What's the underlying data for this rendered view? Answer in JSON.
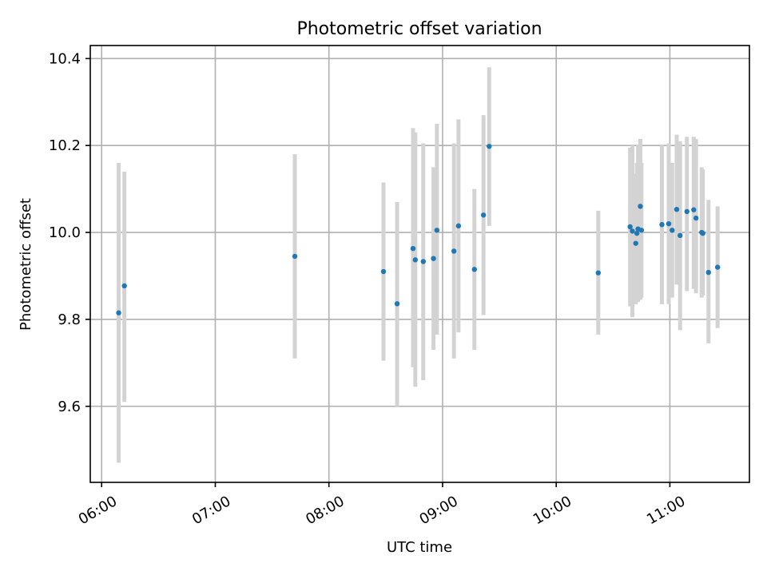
{
  "chart_data": {
    "type": "scatter",
    "title": "Photometric offset variation",
    "xlabel": "UTC time",
    "ylabel": "Photometric offset",
    "x_unit": "hours UTC",
    "xlim": [
      5.9,
      11.7
    ],
    "ylim": [
      9.425,
      10.43
    ],
    "x_ticks": [
      {
        "value": 6,
        "label": "06:00"
      },
      {
        "value": 7,
        "label": "07:00"
      },
      {
        "value": 8,
        "label": "08:00"
      },
      {
        "value": 9,
        "label": "09:00"
      },
      {
        "value": 10,
        "label": "10:00"
      },
      {
        "value": 11,
        "label": "11:00"
      }
    ],
    "y_ticks": [
      {
        "value": 9.6,
        "label": "9.6"
      },
      {
        "value": 9.8,
        "label": "9.8"
      },
      {
        "value": 10.0,
        "label": "10.0"
      },
      {
        "value": 10.2,
        "label": "10.2"
      },
      {
        "value": 10.4,
        "label": "10.4"
      }
    ],
    "grid": true,
    "colors": {
      "point": "#1f77b4",
      "error_bar": "#d3d3d3",
      "grid": "#b0b0b0"
    },
    "points": [
      {
        "x": 6.15,
        "y": 9.815,
        "ylow": 9.47,
        "yhigh": 10.16
      },
      {
        "x": 6.2,
        "y": 9.877,
        "ylow": 9.61,
        "yhigh": 10.14
      },
      {
        "x": 7.7,
        "y": 9.945,
        "ylow": 9.71,
        "yhigh": 10.18
      },
      {
        "x": 8.48,
        "y": 9.91,
        "ylow": 9.705,
        "yhigh": 10.115
      },
      {
        "x": 8.6,
        "y": 9.836,
        "ylow": 9.6,
        "yhigh": 10.07
      },
      {
        "x": 8.74,
        "y": 9.963,
        "ylow": 9.69,
        "yhigh": 10.24
      },
      {
        "x": 8.76,
        "y": 9.937,
        "ylow": 9.645,
        "yhigh": 10.23
      },
      {
        "x": 8.83,
        "y": 9.933,
        "ylow": 9.66,
        "yhigh": 10.205
      },
      {
        "x": 8.92,
        "y": 9.94,
        "ylow": 9.73,
        "yhigh": 10.15
      },
      {
        "x": 8.95,
        "y": 10.005,
        "ylow": 9.765,
        "yhigh": 10.25
      },
      {
        "x": 9.1,
        "y": 9.957,
        "ylow": 9.71,
        "yhigh": 10.205
      },
      {
        "x": 9.14,
        "y": 10.015,
        "ylow": 9.77,
        "yhigh": 10.26
      },
      {
        "x": 9.28,
        "y": 9.915,
        "ylow": 9.73,
        "yhigh": 10.1
      },
      {
        "x": 9.36,
        "y": 10.04,
        "ylow": 9.81,
        "yhigh": 10.27
      },
      {
        "x": 9.41,
        "y": 10.198,
        "ylow": 10.015,
        "yhigh": 10.38
      },
      {
        "x": 10.37,
        "y": 9.907,
        "ylow": 9.765,
        "yhigh": 10.05
      },
      {
        "x": 10.65,
        "y": 10.013,
        "ylow": 9.83,
        "yhigh": 10.195
      },
      {
        "x": 10.67,
        "y": 10.003,
        "ylow": 9.805,
        "yhigh": 10.2
      },
      {
        "x": 10.7,
        "y": 9.975,
        "ylow": 9.835,
        "yhigh": 10.135
      },
      {
        "x": 10.71,
        "y": 9.998,
        "ylow": 9.84,
        "yhigh": 10.16
      },
      {
        "x": 10.72,
        "y": 10.008,
        "ylow": 9.84,
        "yhigh": 10.2
      },
      {
        "x": 10.74,
        "y": 10.06,
        "ylow": 9.845,
        "yhigh": 10.215
      },
      {
        "x": 10.75,
        "y": 10.005,
        "ylow": 9.85,
        "yhigh": 10.16
      },
      {
        "x": 10.93,
        "y": 10.018,
        "ylow": 9.835,
        "yhigh": 10.2
      },
      {
        "x": 10.99,
        "y": 10.02,
        "ylow": 9.835,
        "yhigh": 10.205
      },
      {
        "x": 11.02,
        "y": 10.005,
        "ylow": 9.85,
        "yhigh": 10.16
      },
      {
        "x": 11.06,
        "y": 10.053,
        "ylow": 9.88,
        "yhigh": 10.225
      },
      {
        "x": 11.09,
        "y": 9.993,
        "ylow": 9.775,
        "yhigh": 10.21
      },
      {
        "x": 11.15,
        "y": 10.048,
        "ylow": 9.865,
        "yhigh": 10.22
      },
      {
        "x": 11.21,
        "y": 10.052,
        "ylow": 9.87,
        "yhigh": 10.22
      },
      {
        "x": 11.23,
        "y": 10.033,
        "ylow": 9.86,
        "yhigh": 10.215
      },
      {
        "x": 11.28,
        "y": 10.0,
        "ylow": 9.85,
        "yhigh": 10.15
      },
      {
        "x": 11.29,
        "y": 9.998,
        "ylow": 9.855,
        "yhigh": 10.145
      },
      {
        "x": 11.34,
        "y": 9.908,
        "ylow": 9.745,
        "yhigh": 10.075
      },
      {
        "x": 11.42,
        "y": 9.92,
        "ylow": 9.78,
        "yhigh": 10.06
      }
    ]
  }
}
